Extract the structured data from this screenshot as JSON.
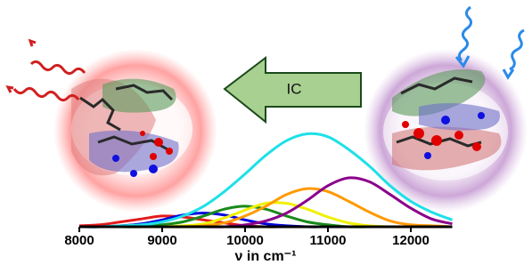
{
  "chart_data": {
    "type": "line",
    "arrow_label": "IC",
    "x_label": "ν in cm⁻¹",
    "x": [
      8000,
      8250,
      8500,
      8750,
      9000,
      9250,
      9500,
      9750,
      10000,
      10250,
      10500,
      10750,
      11000,
      11250,
      11500,
      11750,
      12000,
      12250,
      12500
    ],
    "xlim": [
      8000,
      12500
    ],
    "xticks": [
      8000,
      9000,
      10000,
      11000,
      12000
    ],
    "ylim": [
      0,
      1
    ],
    "series": [
      {
        "color": "#e41a1c",
        "values": [
          0.01,
          0.02,
          0.05,
          0.08,
          0.11,
          0.1,
          0.07,
          0.04,
          0.01,
          0,
          0,
          0,
          0,
          0,
          0,
          0,
          0,
          0,
          0
        ]
      },
      {
        "color": "#0000e0",
        "values": [
          0,
          0,
          0.01,
          0.03,
          0.07,
          0.12,
          0.14,
          0.12,
          0.07,
          0.03,
          0.01,
          0,
          0,
          0,
          0,
          0,
          0,
          0,
          0
        ]
      },
      {
        "color": "#1a8a1a",
        "values": [
          0,
          0,
          0,
          0,
          0.02,
          0.05,
          0.11,
          0.18,
          0.21,
          0.18,
          0.11,
          0.05,
          0.02,
          0,
          0,
          0,
          0,
          0,
          0
        ]
      },
      {
        "color": "#f0f000",
        "values": [
          0,
          0,
          0,
          0,
          0,
          0.01,
          0.03,
          0.09,
          0.17,
          0.24,
          0.24,
          0.18,
          0.1,
          0.04,
          0.01,
          0,
          0,
          0,
          0
        ]
      },
      {
        "color": "#ff9a00",
        "values": [
          0,
          0,
          0,
          0,
          0,
          0,
          0.01,
          0.04,
          0.11,
          0.21,
          0.33,
          0.39,
          0.36,
          0.26,
          0.15,
          0.06,
          0.02,
          0.01,
          0
        ]
      },
      {
        "color": "#8b008b",
        "values": [
          0,
          0,
          0,
          0,
          0,
          0,
          0,
          0,
          0.02,
          0.06,
          0.14,
          0.27,
          0.42,
          0.5,
          0.46,
          0.33,
          0.19,
          0.08,
          0.03
        ]
      },
      {
        "color": "#1ee0e8",
        "values": [
          0,
          0,
          0.01,
          0.02,
          0.05,
          0.11,
          0.21,
          0.36,
          0.54,
          0.73,
          0.88,
          0.95,
          0.92,
          0.79,
          0.62,
          0.42,
          0.26,
          0.15,
          0.07
        ]
      }
    ]
  }
}
